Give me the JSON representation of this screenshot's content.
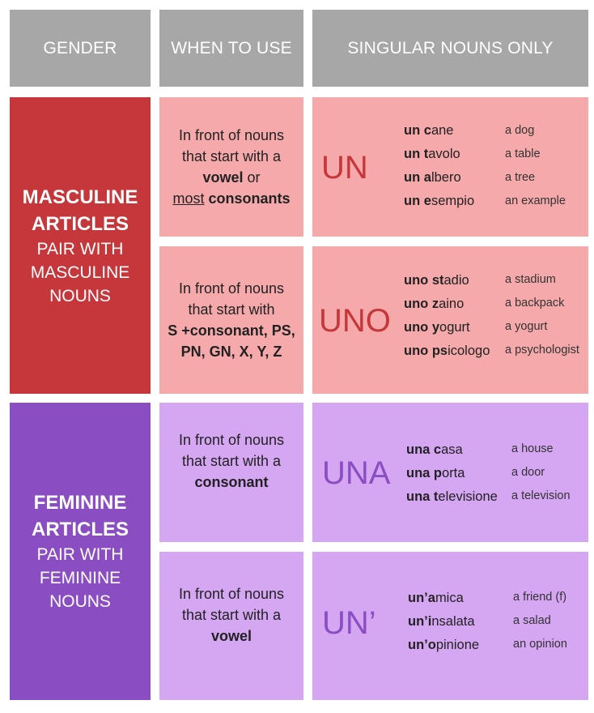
{
  "colors": {
    "header_bg": "#a7a7a7",
    "masculine_dark": "#c5373a",
    "masculine_light": "#f5a9aa",
    "masculine_article": "#c5373a",
    "feminine_dark": "#8a4ec2",
    "feminine_light": "#d5a6f2",
    "feminine_article": "#8a4ec2"
  },
  "headers": {
    "gender": "GENDER",
    "when": "WHEN TO USE",
    "nouns": "SINGULAR NOUNS ONLY"
  },
  "masculine": {
    "title_line1": "MASCULINE",
    "title_line2": "ARTICLES",
    "sub_line1": "PAIR WITH",
    "sub_line2": "MASCULINE",
    "sub_line3": "NOUNS",
    "rows": [
      {
        "article": "UN",
        "when": {
          "l1": "In front of nouns",
          "l2": "that start with a",
          "l3_bold": "vowel",
          "l3_rest": " or",
          "l4_underline": "most",
          "l4_bold": " consonants"
        },
        "examples": [
          {
            "prefix": "un ",
            "initial": "c",
            "rest": "ane",
            "translation": "a dog"
          },
          {
            "prefix": "un ",
            "initial": "t",
            "rest": "avolo",
            "translation": "a table"
          },
          {
            "prefix": "un ",
            "initial": "a",
            "rest": "lbero",
            "translation": "a tree"
          },
          {
            "prefix": "un ",
            "initial": "e",
            "rest": "sempio",
            "translation": "an example"
          }
        ]
      },
      {
        "article": "UNO",
        "when": {
          "l1": "In front of nouns",
          "l2": "that start with",
          "l3_bold": "S +consonant, PS,",
          "l4_bold": "PN, GN, X, Y, Z"
        },
        "examples": [
          {
            "prefix": "uno ",
            "initial": "st",
            "rest": "adio",
            "translation": "a stadium"
          },
          {
            "prefix": "uno ",
            "initial": "z",
            "rest": "aino",
            "translation": "a backpack"
          },
          {
            "prefix": "uno ",
            "initial": "y",
            "rest": "ogurt",
            "translation": "a yogurt"
          },
          {
            "prefix": "uno ",
            "initial": "ps",
            "rest": "icologo",
            "translation": "a psychologist"
          }
        ]
      }
    ]
  },
  "feminine": {
    "title_line1": "FEMININE",
    "title_line2": "ARTICLES",
    "sub_line1": "PAIR WITH",
    "sub_line2": "FEMININE",
    "sub_line3": "NOUNS",
    "rows": [
      {
        "article": "UNA",
        "when": {
          "l1": "In front of nouns",
          "l2": "that start with a",
          "l3_bold": "consonant"
        },
        "examples": [
          {
            "prefix": "una ",
            "initial": "c",
            "rest": "asa",
            "translation": "a house"
          },
          {
            "prefix": "una ",
            "initial": "p",
            "rest": "orta",
            "translation": "a door"
          },
          {
            "prefix": "una ",
            "initial": "t",
            "rest": "elevisione",
            "translation": "a television"
          }
        ]
      },
      {
        "article": "UN’",
        "when": {
          "l1": "In front of nouns",
          "l2": "that start with a",
          "l3_bold": "vowel"
        },
        "examples": [
          {
            "prefix": "un’",
            "initial": "a",
            "rest": "mica",
            "translation": "a friend (f)"
          },
          {
            "prefix": "un’",
            "initial": "i",
            "rest": "nsalata",
            "translation": "a salad"
          },
          {
            "prefix": "un’",
            "initial": "o",
            "rest": "pinione",
            "translation": "an opinion"
          }
        ]
      }
    ]
  }
}
